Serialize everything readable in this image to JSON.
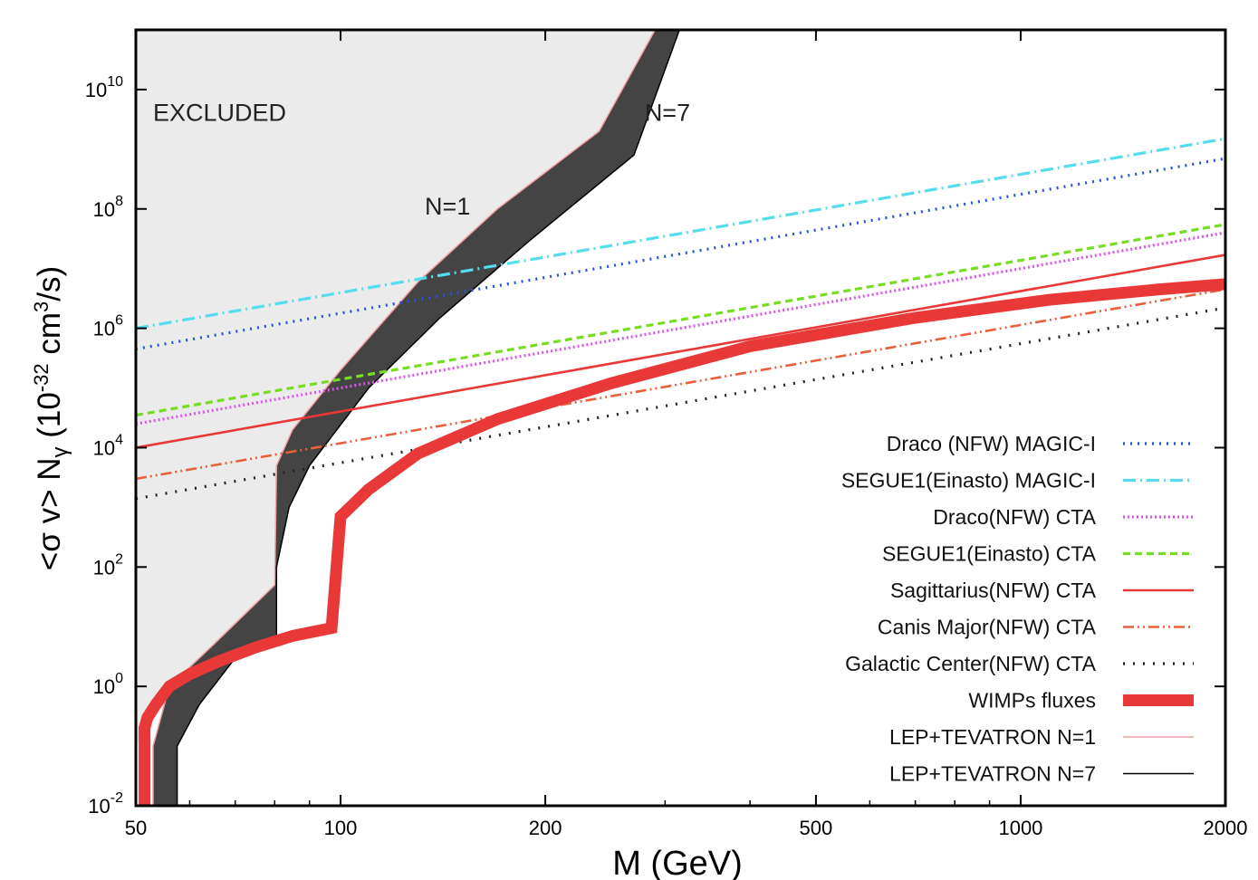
{
  "chart_data": {
    "type": "line",
    "title": "",
    "xlabel": "M (GeV)",
    "ylabel_parts": {
      "lead": "<",
      "sigma": "σ",
      "mid": " v> N",
      "gamma": "γ",
      "unit_open": " (10",
      "unit_exp": "-32",
      "unit_mid": " cm",
      "unit_exp2": "3",
      "unit_close": "/s)"
    },
    "x_scale": "log",
    "y_scale": "log",
    "xlim": [
      50,
      2000
    ],
    "ylim": [
      0.01,
      100000000000
    ],
    "x_ticks": [
      {
        "value": 50,
        "label": "50"
      },
      {
        "value": 100,
        "label": "100"
      },
      {
        "value": 200,
        "label": "200"
      },
      {
        "value": 500,
        "label": "500"
      },
      {
        "value": 1000,
        "label": "1000"
      },
      {
        "value": 2000,
        "label": "2000"
      }
    ],
    "y_ticks": [
      {
        "value": 0.01,
        "base": "10",
        "exp": "-2"
      },
      {
        "value": 1,
        "base": "10",
        "exp": "0"
      },
      {
        "value": 100,
        "base": "10",
        "exp": "2"
      },
      {
        "value": 10000,
        "base": "10",
        "exp": "4"
      },
      {
        "value": 1000000,
        "base": "10",
        "exp": "6"
      },
      {
        "value": 100000000,
        "base": "10",
        "exp": "8"
      },
      {
        "value": 10000000000,
        "base": "10",
        "exp": "10"
      }
    ],
    "annotations": [
      {
        "text": "EXCLUDED",
        "x": 53,
        "y": 3000000000
      },
      {
        "text": "N=1",
        "x": 133,
        "y": 80000000
      },
      {
        "text": "N=7",
        "x": 280,
        "y": 3000000000
      }
    ],
    "excluded_region": {
      "label": "EXCLUDED",
      "color": "#ebebeb",
      "boundary_x": [
        50,
        57,
        65,
        80,
        80.5,
        85,
        100,
        130,
        170,
        240,
        290
      ],
      "boundary_y": [
        0.1,
        1,
        5,
        50,
        5000,
        20000,
        200000,
        6000000,
        100000000,
        2000000000,
        100000000000
      ]
    },
    "band": {
      "color": "#444444",
      "n1_label": "LEP+TEVATRON N=1",
      "n7_label": "LEP+TEVATRON N=7",
      "n1_x": [
        53,
        53,
        56,
        65,
        80,
        80.5,
        85,
        100,
        130,
        170,
        240,
        290
      ],
      "n1_y": [
        0.01,
        0.1,
        1,
        5,
        50,
        5000,
        20000,
        200000,
        6000000,
        100000000,
        2000000000,
        100000000000
      ],
      "n7_x": [
        57.5,
        57.5,
        62,
        70,
        80.5,
        80.5,
        84,
        90,
        110,
        140,
        190,
        270,
        315
      ],
      "n7_y": [
        0.01,
        0.1,
        0.5,
        3,
        5,
        100,
        1000,
        5000,
        100000,
        1500000,
        30000000,
        800000000,
        100000000000
      ]
    },
    "series": [
      {
        "name": "Draco (NFW) MAGIC-I",
        "color": "#2255dd",
        "dash": "2,6",
        "width": 3.2,
        "x": [
          50,
          2000
        ],
        "y": [
          450000,
          700000000
        ]
      },
      {
        "name": "SEGUE1(Einasto) MAGIC-I",
        "color": "#55ddee",
        "dash": "14,5,2,5",
        "width": 3.2,
        "x": [
          50,
          2000
        ],
        "y": [
          1000000,
          1500000000
        ]
      },
      {
        "name": "Draco(NFW) CTA",
        "color": "#dd55ee",
        "dash": "2,3",
        "width": 3.2,
        "x": [
          50,
          2000
        ],
        "y": [
          25000,
          40000000
        ]
      },
      {
        "name": "SEGUE1(Einasto) CTA",
        "color": "#77dd22",
        "dash": "8,5",
        "width": 3.2,
        "x": [
          50,
          2000
        ],
        "y": [
          35000,
          55000000
        ]
      },
      {
        "name": "Sagittarius(NFW) CTA",
        "color": "#e83838",
        "dash": "",
        "width": 2.6,
        "x": [
          50,
          2000
        ],
        "y": [
          10000,
          17000000
        ]
      },
      {
        "name": "Canis Major(NFW) CTA",
        "color": "#e8603a",
        "dash": "12,4,2,4,2,4",
        "width": 2.6,
        "x": [
          50,
          2000
        ],
        "y": [
          3000,
          4500000
        ]
      },
      {
        "name": "Galactic Center(NFW) CTA",
        "color": "#222222",
        "dash": "2,9",
        "width": 3.2,
        "x": [
          50,
          2000
        ],
        "y": [
          1400,
          2200000
        ]
      },
      {
        "name": "WIMPs fluxes",
        "color": "#e83838",
        "dash": "",
        "width": 13,
        "x": [
          51.5,
          51.5,
          52,
          53.5,
          56,
          60,
          66,
          75,
          85,
          97,
          97,
          100,
          110,
          130,
          170,
          250,
          400,
          700,
          1100,
          1600,
          2000
        ],
        "y": [
          0.01,
          0.2,
          0.3,
          0.5,
          1,
          1.6,
          2.6,
          4.5,
          7,
          9.5,
          9.5,
          700,
          2000,
          8000,
          30000,
          120000,
          500000,
          1500000,
          3000000,
          4500000,
          5500000
        ]
      }
    ],
    "legend": {
      "placement": "bottom-right",
      "entries": [
        {
          "label": "Draco (NFW) MAGIC-I",
          "color": "#2255dd",
          "dash": "2,6",
          "width": 3.2
        },
        {
          "label": "SEGUE1(Einasto) MAGIC-I",
          "color": "#55ddee",
          "dash": "14,5,2,5",
          "width": 3.2
        },
        {
          "label": "Draco(NFW) CTA",
          "color": "#dd55ee",
          "dash": "2,3",
          "width": 3.2
        },
        {
          "label": "SEGUE1(Einasto) CTA",
          "color": "#77dd22",
          "dash": "8,5",
          "width": 3.2
        },
        {
          "label": "Sagittarius(NFW) CTA",
          "color": "#e83838",
          "dash": "",
          "width": 2.6
        },
        {
          "label": "Canis Major(NFW) CTA",
          "color": "#e8603a",
          "dash": "12,4,2,4,2,4",
          "width": 2.6
        },
        {
          "label": "Galactic Center(NFW) CTA",
          "color": "#222222",
          "dash": "2,9",
          "width": 3.2
        },
        {
          "label": "WIMPs fluxes",
          "color": "#e83838",
          "dash": "",
          "width": 13
        },
        {
          "label": "LEP+TEVATRON N=1",
          "color": "#f2a0a0",
          "dash": "",
          "width": 1.5
        },
        {
          "label": "LEP+TEVATRON N=7",
          "color": "#000000",
          "dash": "",
          "width": 1.5
        }
      ]
    }
  }
}
